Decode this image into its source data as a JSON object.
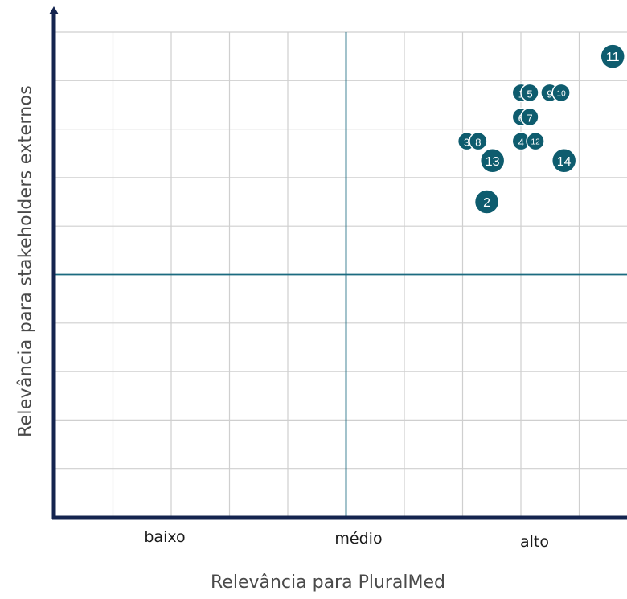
{
  "chart_data": {
    "type": "scatter",
    "xlabel": "Relevância para PluralMed",
    "ylabel": "Relevância para stakeholders externos",
    "x_categories": [
      "baixo",
      "médio",
      "alto"
    ],
    "xlim": [
      0,
      10
    ],
    "ylim": [
      0,
      10
    ],
    "grid": true,
    "point_color": "#0e5c6e",
    "axis_color": "#14244f",
    "divider_color": "#1b6b80",
    "points": [
      {
        "label": "11",
        "x": 9.75,
        "y": 9.5
      },
      {
        "label": "1",
        "x": 8.15,
        "y": 8.75
      },
      {
        "label": "5",
        "x": 8.3,
        "y": 8.75
      },
      {
        "label": "9",
        "x": 8.65,
        "y": 8.75
      },
      {
        "label": "10",
        "x": 8.85,
        "y": 8.75
      },
      {
        "label": "6",
        "x": 8.15,
        "y": 8.25
      },
      {
        "label": "7",
        "x": 8.3,
        "y": 8.25
      },
      {
        "label": "3",
        "x": 7.2,
        "y": 7.75
      },
      {
        "label": "8",
        "x": 7.4,
        "y": 7.75
      },
      {
        "label": "4",
        "x": 8.15,
        "y": 7.75
      },
      {
        "label": "12",
        "x": 8.4,
        "y": 7.75
      },
      {
        "label": "13",
        "x": 7.65,
        "y": 7.35
      },
      {
        "label": "14",
        "x": 8.9,
        "y": 7.35
      },
      {
        "label": "2",
        "x": 7.55,
        "y": 6.5
      }
    ]
  }
}
